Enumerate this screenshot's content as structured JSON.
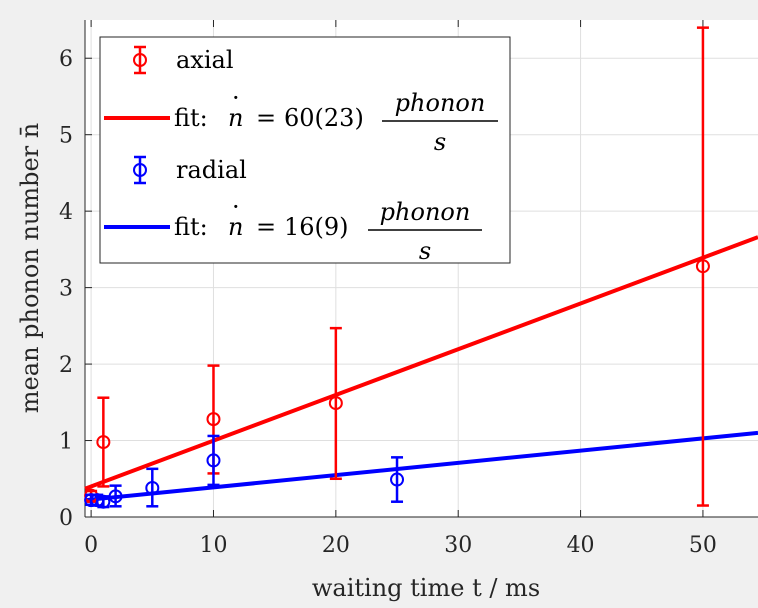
{
  "chart_data": {
    "type": "scatter",
    "title": "",
    "xlabel": "waiting time t / ms",
    "ylabel": "mean phonon number n̄",
    "xlim": [
      -0.5,
      54.5
    ],
    "ylim": [
      0,
      6.5
    ],
    "xticks": [
      0,
      10,
      20,
      30,
      40,
      50
    ],
    "yticks": [
      0,
      1,
      2,
      3,
      4,
      5,
      6
    ],
    "grid": true,
    "legend_placement": "top-left",
    "series": [
      {
        "name": "axial",
        "kind": "errorbar",
        "color": "#ff0000",
        "points": [
          {
            "x": 0,
            "y": 0.28,
            "lo": 0.2,
            "hi": 0.34
          },
          {
            "x": 1,
            "y": 0.98,
            "lo": 0.4,
            "hi": 1.56
          },
          {
            "x": 10,
            "y": 1.28,
            "lo": 0.57,
            "hi": 1.98
          },
          {
            "x": 20,
            "y": 1.49,
            "lo": 0.5,
            "hi": 2.47
          },
          {
            "x": 50,
            "y": 3.28,
            "lo": 0.15,
            "hi": 6.4
          }
        ]
      },
      {
        "name": "fit",
        "kind": "line",
        "color": "#ff0000",
        "x": [
          -0.5,
          54.5
        ],
        "y": [
          0.37,
          3.66
        ]
      },
      {
        "name": "radial",
        "kind": "errorbar",
        "color": "#0000ff",
        "points": [
          {
            "x": 0,
            "y": 0.22,
            "lo": 0.16,
            "hi": 0.29
          },
          {
            "x": 0.5,
            "y": 0.22,
            "lo": 0.15,
            "hi": 0.29
          },
          {
            "x": 1,
            "y": 0.2,
            "lo": 0.13,
            "hi": 0.27
          },
          {
            "x": 2,
            "y": 0.27,
            "lo": 0.14,
            "hi": 0.41
          },
          {
            "x": 5,
            "y": 0.38,
            "lo": 0.14,
            "hi": 0.63
          },
          {
            "x": 10,
            "y": 0.74,
            "lo": 0.42,
            "hi": 1.06
          },
          {
            "x": 25,
            "y": 0.49,
            "lo": 0.2,
            "hi": 0.78
          }
        ]
      },
      {
        "name": "fit",
        "kind": "line",
        "color": "#0000ff",
        "x": [
          -0.5,
          54.5
        ],
        "y": [
          0.22,
          1.1
        ]
      }
    ],
    "legend": [
      {
        "type": "marker",
        "color": "#ff0000",
        "text": "axial"
      },
      {
        "type": "line",
        "color": "#ff0000",
        "prefix": "fit:",
        "lhs": "n",
        "coef": "60(23)",
        "num": "phonon",
        "den": "s"
      },
      {
        "type": "marker",
        "color": "#0000ff",
        "text": "radial"
      },
      {
        "type": "line",
        "color": "#0000ff",
        "prefix": "fit:",
        "lhs": "n",
        "coef": "16(9)",
        "num": "phonon",
        "den": "s"
      }
    ]
  }
}
